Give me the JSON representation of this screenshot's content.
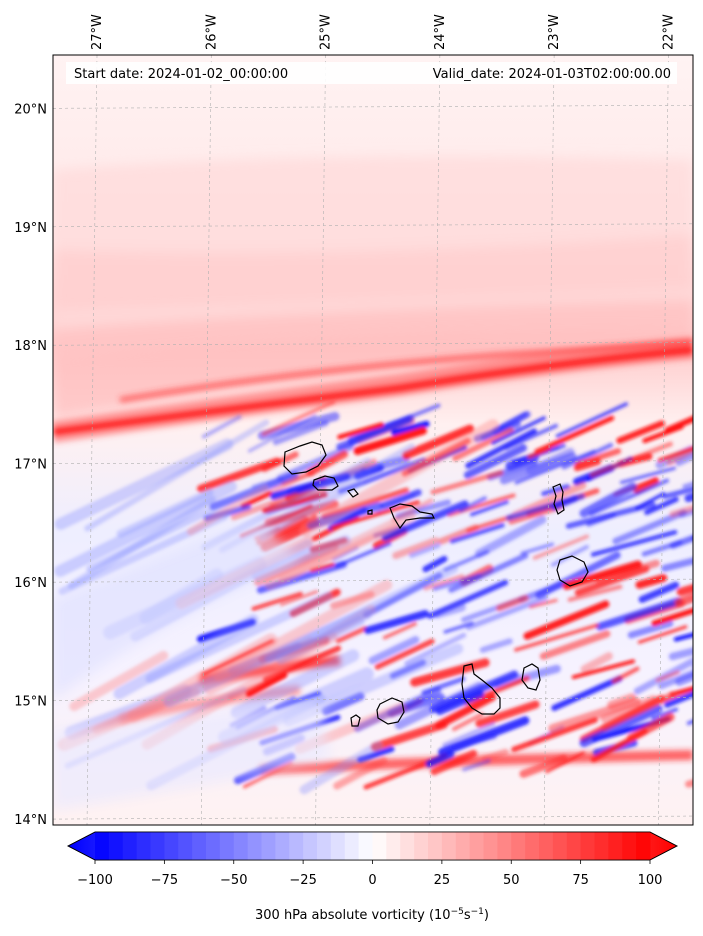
{
  "header": {
    "start_date": "Start date: 2024-01-02_00:00:00",
    "valid_date": "Valid_date: 2024-01-03T02:00:00.00"
  },
  "axes": {
    "longitude_labels": [
      "27°W",
      "26°W",
      "25°W",
      "24°W",
      "23°W",
      "22°W"
    ],
    "latitude_labels": [
      "20°N",
      "19°N",
      "18°N",
      "17°N",
      "16°N",
      "15°N",
      "14°N"
    ],
    "lon_range": [
      -27.35,
      -21.75
    ],
    "lat_range": [
      13.95,
      20.45
    ]
  },
  "colorbar": {
    "ticks": [
      "−100",
      "−75",
      "−50",
      "−25",
      "0",
      "25",
      "50",
      "75",
      "100"
    ],
    "range": [
      -100,
      100
    ],
    "label": "300 hPa absolute vorticity (10",
    "label_exp1": "−5",
    "label_mid": "s",
    "label_exp2": "−1",
    "label_end": ")",
    "low_color": "#0000ff",
    "mid_color": "#ffffff",
    "high_color": "#ff0000"
  },
  "colors": {
    "positive": "#ff0000",
    "negative": "#0000ff",
    "coastline": "#000000",
    "grid": "#b0b0b0"
  }
}
